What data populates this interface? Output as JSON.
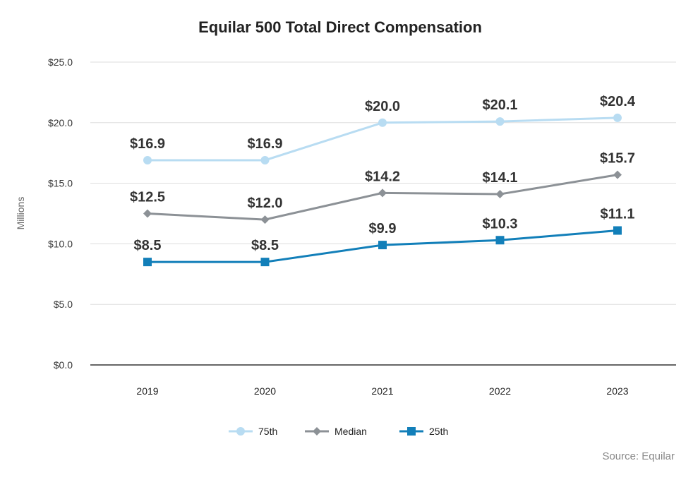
{
  "chart_data": {
    "type": "line",
    "title": "Equilar 500 Total Direct Compensation",
    "ylabel": "Millions",
    "xlabel": "",
    "categories": [
      "2019",
      "2020",
      "2021",
      "2022",
      "2023"
    ],
    "ylim": [
      0,
      25
    ],
    "yticks": [
      0,
      5,
      10,
      15,
      20,
      25
    ],
    "ytick_labels": [
      "$0.0",
      "$5.0",
      "$10.0",
      "$15.0",
      "$20.0",
      "$25.0"
    ],
    "grid": true,
    "legend_position": "bottom",
    "series": [
      {
        "name": "75th",
        "values": [
          16.9,
          16.9,
          20.0,
          20.1,
          20.4
        ],
        "labels": [
          "$16.9",
          "$16.9",
          "$20.0",
          "$20.1",
          "$20.4"
        ],
        "color": "#b8dcf2",
        "marker": "circle"
      },
      {
        "name": "Median",
        "values": [
          12.5,
          12.0,
          14.2,
          14.1,
          15.7
        ],
        "labels": [
          "$12.5",
          "$12.0",
          "$14.2",
          "$14.1",
          "$15.7"
        ],
        "color": "#8c9196",
        "marker": "diamond"
      },
      {
        "name": "25th",
        "values": [
          8.5,
          8.5,
          9.9,
          10.3,
          11.1
        ],
        "labels": [
          "$8.5",
          "$8.5",
          "$9.9",
          "$10.3",
          "$11.1"
        ],
        "color": "#127fb9",
        "marker": "square"
      }
    ],
    "source": "Source: Equilar"
  }
}
